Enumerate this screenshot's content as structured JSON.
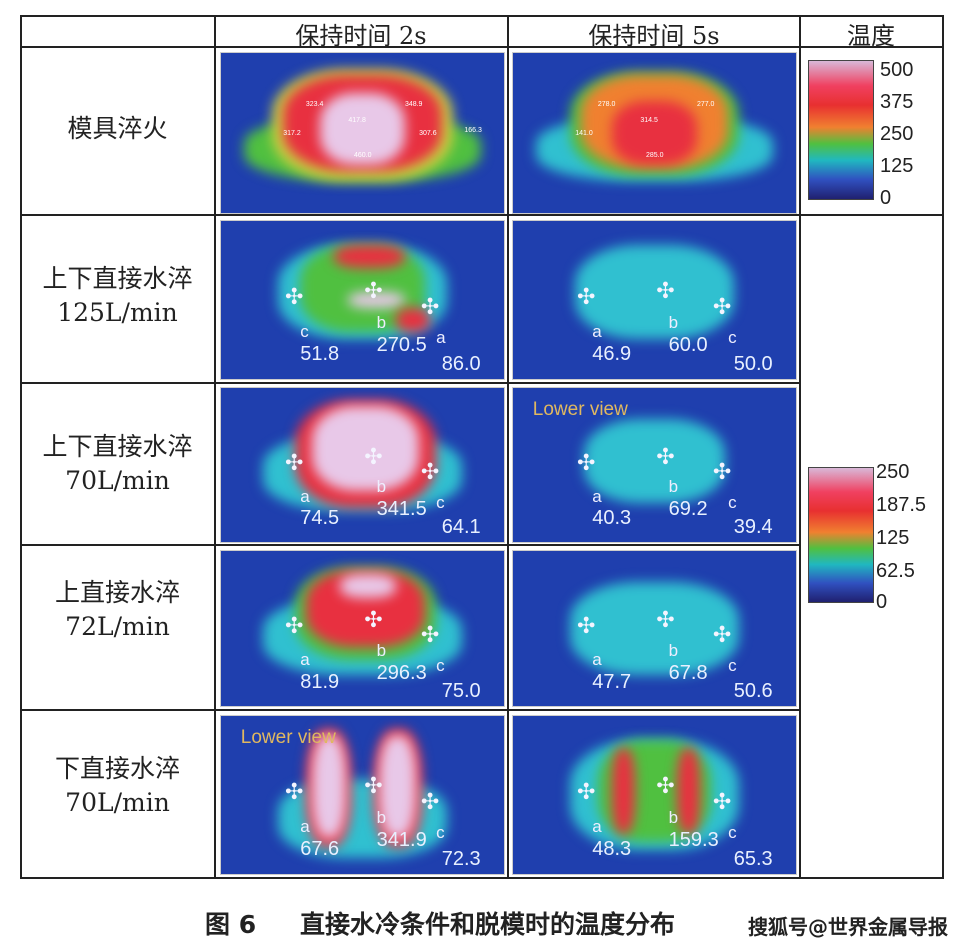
{
  "header": {
    "col_2s": "保持时间 2s",
    "col_5s": "保持时间 5s",
    "col_temp": "温度"
  },
  "rows": [
    {
      "label": [
        "模具淬火"
      ],
      "img2s": {
        "points": [
          "323.4",
          "417.8",
          "348.9",
          "460.0",
          "317.2",
          "307.6",
          "166.3"
        ]
      },
      "img5s": {
        "points": [
          "278.0",
          "314.5",
          "277.0",
          "285.0",
          "141.0"
        ]
      }
    },
    {
      "label": [
        "上下直接水淬",
        "125L/min"
      ],
      "img2s": {
        "values": [
          "51.8",
          "270.5",
          "86.0"
        ],
        "letters": [
          "c",
          "b",
          "a"
        ]
      },
      "img5s": {
        "values": [
          "46.9",
          "60.0",
          "50.0"
        ],
        "letters": [
          "a",
          "b",
          "c"
        ]
      }
    },
    {
      "label": [
        "上下直接水淬",
        "70L/min"
      ],
      "img2s": {
        "values": [
          "74.5",
          "341.5",
          "64.1"
        ],
        "letters": [
          "a",
          "b",
          "c"
        ]
      },
      "img5s": {
        "view": "Lower view",
        "values": [
          "40.3",
          "69.2",
          "39.4"
        ],
        "letters": [
          "a",
          "b",
          "c"
        ]
      }
    },
    {
      "label": [
        "上直接水淬",
        "72L/min"
      ],
      "img2s": {
        "values": [
          "81.9",
          "296.3",
          "75.0"
        ],
        "letters": [
          "a",
          "b",
          "c"
        ]
      },
      "img5s": {
        "values": [
          "47.7",
          "67.8",
          "50.6"
        ],
        "letters": [
          "a",
          "b",
          "c"
        ]
      }
    },
    {
      "label": [
        "下直接水淬",
        "70L/min"
      ],
      "img2s": {
        "view": "Lower view",
        "values": [
          "67.6",
          "341.9",
          "72.3"
        ],
        "letters": [
          "a",
          "b",
          "c"
        ]
      },
      "img5s": {
        "values": [
          "48.3",
          "159.3",
          "65.3"
        ],
        "letters": [
          "a",
          "b",
          "c"
        ]
      }
    }
  ],
  "legend1": {
    "ticks": [
      "500",
      "375",
      "250",
      "125",
      "0"
    ]
  },
  "legend2": {
    "ticks": [
      "250",
      "187.5",
      "125",
      "62.5",
      "0"
    ]
  },
  "caption": {
    "fig": "图 6",
    "text": "直接水冷条件和脱模时的温度分布",
    "watermark": "搜狐号@世界金属导报"
  },
  "colors": {
    "cold": "#1f3fae",
    "hot": "#e83040",
    "max": "#e8d0e8"
  }
}
